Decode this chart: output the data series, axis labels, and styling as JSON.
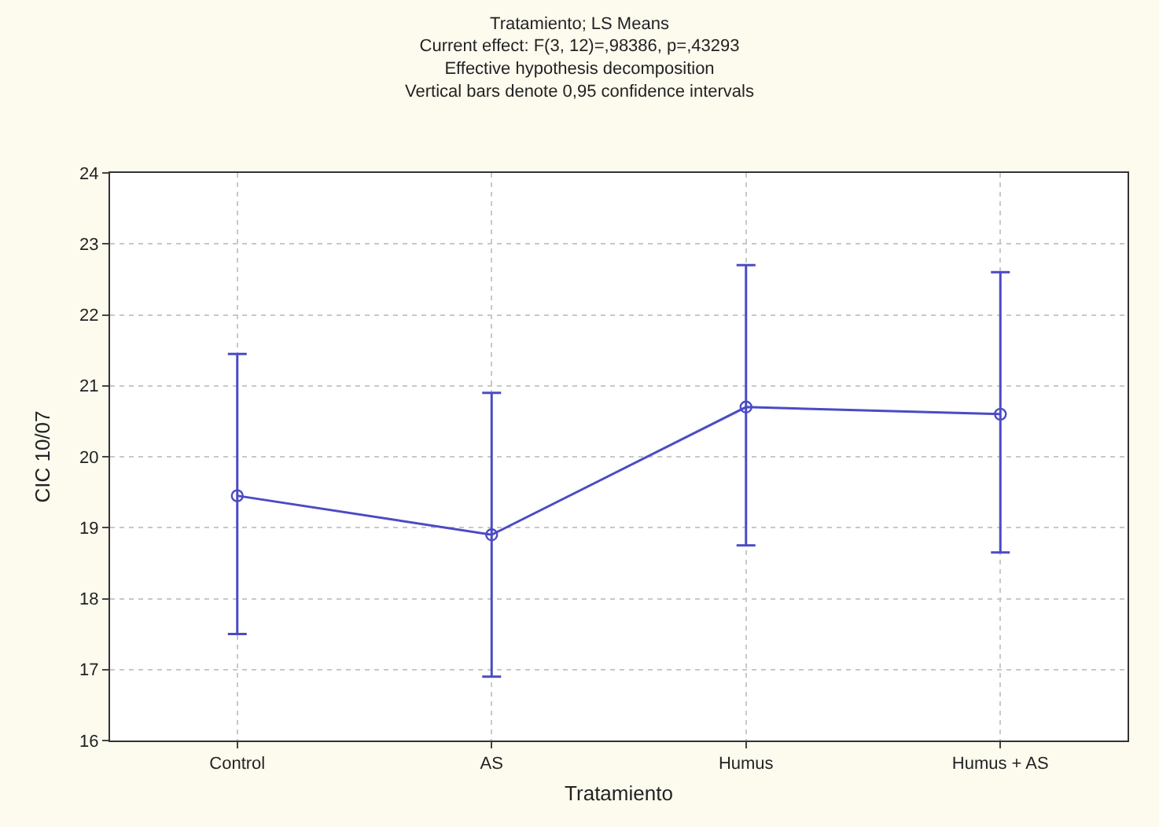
{
  "chart_data": {
    "type": "line",
    "title": "Tratamiento; LS Means\nCurrent effect: F(3, 12)=,98386, p=,43293\nEffective hypothesis decomposition\nVertical bars denote 0,95 confidence intervals",
    "xlabel": "Tratamiento",
    "ylabel": "CIC 10/07",
    "categories": [
      "Control",
      "AS",
      "Humus",
      "Humus + AS"
    ],
    "series": [
      {
        "color": "#4b4bc4",
        "values": [
          19.45,
          18.9,
          20.7,
          20.6
        ],
        "errors": [
          [
            17.5,
            21.45
          ],
          [
            16.9,
            20.9
          ],
          [
            18.75,
            22.7
          ],
          [
            18.65,
            22.6
          ]
        ]
      }
    ],
    "ylim": [
      16,
      24
    ],
    "yticks": [
      16,
      17,
      18,
      19,
      20,
      21,
      22,
      23,
      24
    ],
    "grid": true,
    "marker": "circle",
    "line_style": "solid"
  }
}
